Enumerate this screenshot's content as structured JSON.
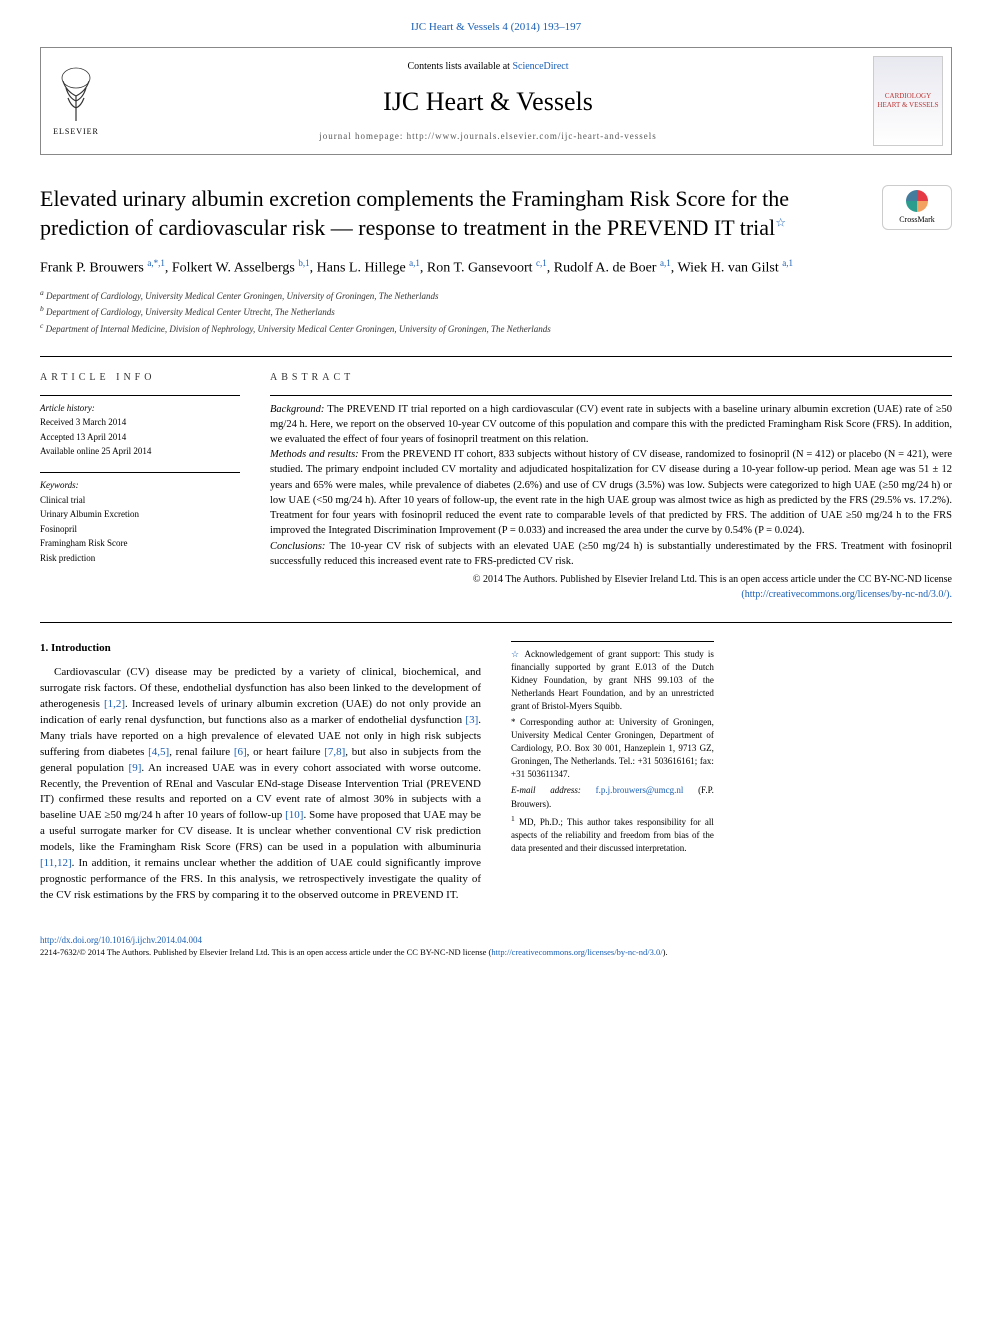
{
  "header": {
    "top_link": "IJC Heart & Vessels 4 (2014) 193–197",
    "contents_prefix": "Contents lists available at ",
    "contents_link": "ScienceDirect",
    "journal_title": "IJC Heart & Vessels",
    "homepage_label": "journal homepage: http://www.journals.elsevier.com/ijc-heart-and-vessels",
    "elsevier_label": "ELSEVIER",
    "cover_text": "CARDIOLOGY HEART & VESSELS"
  },
  "crossmark": {
    "label": "CrossMark"
  },
  "article": {
    "title": "Elevated urinary albumin excretion complements the Framingham Risk Score for the prediction of cardiovascular risk — response to treatment in the PREVEND IT trial",
    "star_note_marker": "☆",
    "authors_html": "Frank P. Brouwers <sup>a,*,1</sup>, Folkert W. Asselbergs <sup>b,1</sup>, Hans L. Hillege <sup>a,1</sup>, Ron T. Gansevoort <sup>c,1</sup>, Rudolf A. de Boer <sup>a,1</sup>, Wiek H. van Gilst <sup>a,1</sup>",
    "affiliations": {
      "a": "Department of Cardiology, University Medical Center Groningen, University of Groningen, The Netherlands",
      "b": "Department of Cardiology, University Medical Center Utrecht, The Netherlands",
      "c": "Department of Internal Medicine, Division of Nephrology, University Medical Center Groningen, University of Groningen, The Netherlands"
    }
  },
  "info": {
    "heading": "ARTICLE INFO",
    "history_label": "Article history:",
    "received": "Received 3 March 2014",
    "accepted": "Accepted 13 April 2014",
    "online": "Available online 25 April 2014",
    "keywords_label": "Keywords:",
    "keywords": [
      "Clinical trial",
      "Urinary Albumin Excretion",
      "Fosinopril",
      "Framingham Risk Score",
      "Risk prediction"
    ]
  },
  "abstract": {
    "heading": "ABSTRACT",
    "background_label": "Background:",
    "background": " The PREVEND IT trial reported on a high cardiovascular (CV) event rate in subjects with a baseline urinary albumin excretion (UAE) rate of ≥50 mg/24 h. Here, we report on the observed 10-year CV outcome of this population and compare this with the predicted Framingham Risk Score (FRS). In addition, we evaluated the effect of four years of fosinopril treatment on this relation.",
    "methods_label": "Methods and results:",
    "methods": " From the PREVEND IT cohort, 833 subjects without history of CV disease, randomized to fosinopril (N = 412) or placebo (N = 421), were studied. The primary endpoint included CV mortality and adjudicated hospitalization for CV disease during a 10-year follow-up period. Mean age was 51 ± 12 years and 65% were males, while prevalence of diabetes (2.6%) and use of CV drugs (3.5%) was low. Subjects were categorized to high UAE (≥50 mg/24 h) or low UAE (<50 mg/24 h). After 10 years of follow-up, the event rate in the high UAE group was almost twice as high as predicted by the FRS (29.5% vs. 17.2%). Treatment for four years with fosinopril reduced the event rate to comparable levels of that predicted by FRS. The addition of UAE ≥50 mg/24 h to the FRS improved the Integrated Discrimination Improvement (P = 0.033) and increased the area under the curve by 0.54% (P = 0.024).",
    "conclusions_label": "Conclusions:",
    "conclusions": " The 10-year CV risk of subjects with an elevated UAE (≥50 mg/24 h) is substantially underestimated by the FRS. Treatment with fosinopril successfully reduced this increased event rate to FRS-predicted CV risk.",
    "copyright": "© 2014 The Authors. Published by Elsevier Ireland Ltd. This is an open access article under the CC BY-NC-ND license",
    "license_url": "(http://creativecommons.org/licenses/by-nc-nd/3.0/)."
  },
  "intro": {
    "heading": "1. Introduction",
    "p1a": "Cardiovascular (CV) disease may be predicted by a variety of clinical, biochemical, and surrogate risk factors. Of these, endothelial dysfunction has also been linked to the development of atherogenesis ",
    "c1": "[1,2]",
    "p1b": ". Increased levels of urinary albumin excretion (UAE) do not only provide an indication of early renal dysfunction, but functions also as a marker of endothelial dysfunction ",
    "c2": "[3]",
    "p1c": ". Many trials have reported on a high prevalence of elevated UAE not only in high risk subjects suffering from diabetes ",
    "c3": "[4,5]",
    "p1d": ", renal failure ",
    "c4": "[6]",
    "p1e": ", or heart failure ",
    "c5": "[7,8]",
    "p1f": ", but also in subjects from the general population ",
    "c6": "[9]",
    "p1g": ". An increased UAE was in every cohort associated with worse outcome. Recently, the Prevention of REnal and Vascular ENd-stage Disease Intervention Trial (PREVEND IT) confirmed these results and reported on a CV event rate of almost 30% in subjects with a baseline UAE ≥50 mg/24 h after 10 years of follow-up ",
    "c7": "[10]",
    "p1h": ". Some have proposed that UAE may be a useful surrogate marker for CV disease. It is unclear whether conventional CV risk prediction models, like the Framingham Risk Score (FRS) can be used in a population with albuminuria ",
    "c8": "[11,12]",
    "p1i": ". In addition, it remains unclear whether the addition of UAE could significantly improve prognostic performance of the FRS. In this analysis, we retrospectively investigate the quality of the CV risk estimations by the FRS by comparing it to the observed outcome in PREVEND IT."
  },
  "footnotes": {
    "grant_marker": "☆",
    "grant": " Acknowledgement of grant support: This study is financially supported by grant E.013 of the Dutch Kidney Foundation, by grant NHS 99.103 of the Netherlands Heart Foundation, and by an unrestricted grant of Bristol-Myers Squibb.",
    "corr_marker": "*",
    "corr": " Corresponding author at: University of Groningen, University Medical Center Groningen, Department of Cardiology, P.O. Box 30 001, Hanzeplein 1, 9713 GZ, Groningen, The Netherlands. Tel.: +31 503616161; fax: +31 503611347.",
    "email_label": "E-mail address: ",
    "email": "f.p.j.brouwers@umcg.nl",
    "email_suffix": " (F.P. Brouwers).",
    "note1_marker": "1",
    "note1": " MD, Ph.D.; This author takes responsibility for all aspects of the reliability and freedom from bias of the data presented and their discussed interpretation."
  },
  "footer": {
    "doi": "http://dx.doi.org/10.1016/j.ijchv.2014.04.004",
    "line2a": "2214-7632/© 2014 The Authors. Published by Elsevier Ireland Ltd. This is an open access article under the CC BY-NC-ND license (",
    "line2_link": "http://creativecommons.org/licenses/by-nc-nd/3.0/",
    "line2b": ")."
  },
  "colors": {
    "link": "#1a5fb4",
    "text": "#000000",
    "rule": "#000000"
  }
}
